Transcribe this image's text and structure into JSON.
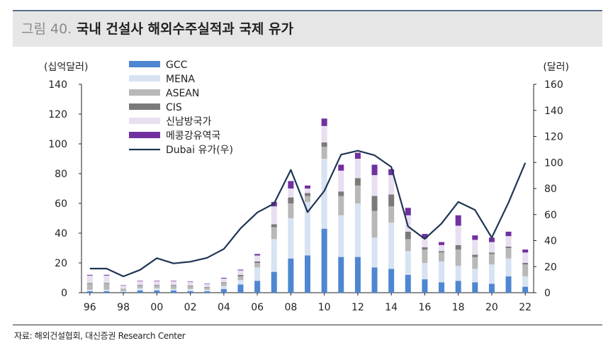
{
  "header": {
    "figure_number": "그림 40.",
    "title": "국내 건설사 해외수주실적과 국제 유가"
  },
  "source": "자료: 해외건설협회, 대신증권 Research Center",
  "colors": {
    "GCC": "#4f86d1",
    "MENA": "#d7e3f2",
    "ASEAN": "#b8b8b8",
    "CIS": "#7a7a7a",
    "신남방국가": "#e8dff0",
    "메콩강유역국": "#7030a0",
    "Dubai": "#1f3554"
  },
  "chart_data": {
    "type": "bar",
    "stacked": true,
    "left_axis_label": "(십억달러)",
    "right_axis_label": "(달러)",
    "ylim_left": [
      0,
      140
    ],
    "ylim_right": [
      0,
      160
    ],
    "yticks_left": [
      "0",
      "20",
      "40",
      "60",
      "80",
      "100",
      "120",
      "140"
    ],
    "yticks_right": [
      "0",
      "20",
      "40",
      "60",
      "80",
      "100",
      "120",
      "140",
      "160"
    ],
    "x_tick_labels": [
      "96",
      "98",
      "00",
      "02",
      "04",
      "06",
      "08",
      "10",
      "12",
      "14",
      "16",
      "18",
      "20",
      "22"
    ],
    "legend_position": "top-left",
    "legend": [
      "GCC",
      "MENA",
      "ASEAN",
      "CIS",
      "신남방국가",
      "메콩강유역국",
      "Dubai 유가(우)"
    ],
    "years": [
      1996,
      1997,
      1998,
      1999,
      2000,
      2001,
      2002,
      2003,
      2004,
      2005,
      2006,
      2007,
      2008,
      2009,
      2010,
      2011,
      2012,
      2013,
      2014,
      2015,
      2016,
      2017,
      2018,
      2019,
      2020,
      2021,
      2022
    ],
    "series": [
      {
        "name": "GCC",
        "values": [
          1,
          1,
          0.5,
          1.5,
          1.5,
          1.5,
          1,
          1,
          2.5,
          5.5,
          8,
          14,
          23,
          25,
          43,
          24,
          24,
          17,
          16,
          12,
          9,
          7,
          8,
          7,
          6,
          11,
          4
        ]
      },
      {
        "name": "MENA",
        "values": [
          1,
          1,
          0.5,
          1.5,
          1.5,
          1,
          1.5,
          1,
          2,
          3,
          9,
          22,
          27,
          36,
          47,
          28,
          36,
          20,
          31,
          16,
          11,
          14,
          10,
          9,
          13,
          12,
          7
        ]
      },
      {
        "name": "ASEAN",
        "values": [
          4,
          4,
          1.5,
          2,
          2,
          2.5,
          2,
          1.5,
          2,
          2.5,
          3,
          8,
          10,
          4,
          8,
          13,
          12,
          18,
          11,
          8,
          9,
          6,
          11,
          8,
          7,
          7,
          8
        ]
      },
      {
        "name": "CIS",
        "values": [
          0.5,
          0.5,
          0.2,
          0.3,
          0.3,
          0.3,
          0.3,
          0.3,
          0.5,
          1,
          1,
          2,
          4,
          2,
          3,
          3,
          5,
          10,
          8,
          5,
          1.5,
          1,
          3,
          1.5,
          1,
          1,
          1
        ]
      },
      {
        "name": "신남방국가",
        "values": [
          5,
          5,
          2,
          2.5,
          2.5,
          2.5,
          2.5,
          2,
          2.5,
          3,
          4,
          12,
          6,
          3,
          11,
          14,
          13,
          14,
          13,
          11,
          6,
          4,
          13,
          10,
          7,
          7,
          7
        ]
      },
      {
        "name": "메콩강유역국",
        "values": [
          0.5,
          0.5,
          0.3,
          0.3,
          0.3,
          0.3,
          0.3,
          0.3,
          0.5,
          0.5,
          1,
          3,
          5,
          2,
          5,
          4,
          4,
          7,
          4,
          5,
          3,
          2,
          7,
          3,
          3,
          3,
          2
        ]
      },
      {
        "name": "Dubai 유가(우)",
        "axis": "right",
        "type": "line",
        "values": [
          18.5,
          18.5,
          12.5,
          17.5,
          26.5,
          22.5,
          23.8,
          26.8,
          33.6,
          49.4,
          61.6,
          68.4,
          94.3,
          61.9,
          78.1,
          106,
          109,
          105.5,
          96.6,
          50.9,
          41.3,
          53.1,
          69.7,
          63.5,
          42.3,
          69.2,
          99.7
        ]
      }
    ]
  }
}
